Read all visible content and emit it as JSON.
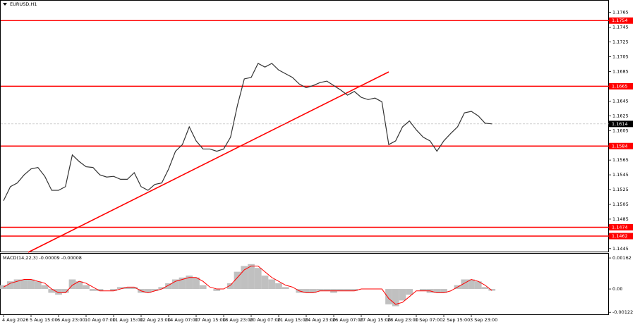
{
  "chart_data": [
    {
      "type": "line",
      "title": "EURUSD,H1",
      "categories": [
        "4 Aug 2026",
        null,
        null,
        null,
        "5 Aug 15:00",
        null,
        null,
        null,
        "6 Aug 23:00",
        null,
        null,
        null,
        "10 Aug 07:00",
        null,
        null,
        null,
        "11 Aug 15:00",
        null,
        null,
        null,
        "12 Aug 23:00",
        null,
        null,
        null,
        "14 Aug 07:00",
        null,
        null,
        null,
        "17 Aug 15:00",
        null,
        null,
        null,
        "18 Aug 23:00",
        null,
        null,
        null,
        "20 Aug 07:00",
        null,
        null,
        null,
        "21 Aug 15:00",
        null,
        null,
        null,
        "24 Aug 23:00",
        null,
        null,
        null,
        "26 Aug 07:00",
        null,
        null,
        null,
        "27 Aug 15:00",
        null,
        null,
        null,
        "28 Aug 23:00",
        null,
        null,
        null,
        "1 Sep 07:00",
        null,
        null,
        null,
        "2 Sep 15:00",
        null,
        null,
        null,
        "3 Sep 23:00",
        null,
        null,
        null
      ],
      "values": [
        1.151,
        1.1529,
        1.1534,
        1.1545,
        1.1553,
        1.1555,
        1.1543,
        1.1524,
        1.1524,
        1.1529,
        1.1572,
        1.1563,
        1.1556,
        1.1555,
        1.1545,
        1.1542,
        1.1543,
        1.1539,
        1.1539,
        1.1548,
        1.1529,
        1.1524,
        1.1532,
        1.1534,
        1.1553,
        1.1577,
        1.1586,
        1.161,
        1.1591,
        1.158,
        1.158,
        1.1577,
        1.158,
        1.1596,
        1.1639,
        1.1675,
        1.1677,
        1.1696,
        1.1691,
        1.1696,
        1.1687,
        1.1682,
        1.1677,
        1.1668,
        1.1663,
        1.1666,
        1.167,
        1.1672,
        1.1666,
        1.166,
        1.1653,
        1.1658,
        1.165,
        1.1647,
        1.1649,
        1.1644,
        1.1586,
        1.1591,
        1.161,
        1.1618,
        1.1606,
        1.1596,
        1.1591,
        1.1577,
        1.1591,
        1.1601,
        1.161,
        1.1629,
        1.1631,
        1.1625,
        1.1615,
        1.1614
      ],
      "color": "#333333",
      "ylim": [
        1.1441,
        1.178
      ],
      "yticks": [
        1.1765,
        1.1745,
        1.1725,
        1.1705,
        1.1685,
        1.1645,
        1.1625,
        1.1605,
        1.1565,
        1.1545,
        1.1525,
        1.1505,
        1.1485,
        1.1445
      ],
      "levels": [
        1.1754,
        1.1665,
        1.1584,
        1.1474,
        1.1462
      ],
      "level_color": "#ff0000",
      "last_price": 1.1614
    },
    {
      "type": "macd",
      "title": "MACD(14,22,3) -0.00009 -0.00008",
      "values": [
        0.0002,
        0.0004,
        0.0005,
        0.0005,
        0.0005,
        0.0004,
        0.0002,
        -0.0002,
        -0.0003,
        -0.0002,
        0.0005,
        0.0004,
        0.0002,
        -0.0001,
        -0.0001,
        0,
        -0.0001,
        0.0001,
        0.0001,
        0.0001,
        -0.0002,
        -0.0002,
        -0.0001,
        0.0001,
        0.0003,
        0.0005,
        0.0006,
        0.0007,
        0.0006,
        0.0002,
        0,
        -0.0001,
        0,
        0.0003,
        0.0009,
        0.0012,
        0.0013,
        0.0011,
        0.0007,
        0.0005,
        0.0003,
        0.0001,
        0,
        -0.0002,
        -0.0002,
        -0.0002,
        -0.0001,
        -0.0001,
        -0.0002,
        -0.0001,
        -0.0001,
        -0.0001,
        0,
        0,
        0,
        0,
        -0.0008,
        -0.0009,
        -0.0006,
        -0.0003,
        0,
        -0.0001,
        -0.0002,
        -0.0002,
        -0.0002,
        0,
        0.0002,
        0.0005,
        0.0005,
        0.0004,
        0.0001,
        -9e-05
      ],
      "signal": [
        0.0001,
        0.0003,
        0.0004,
        0.0005,
        0.0005,
        0.0004,
        0.0003,
        0,
        -0.0002,
        -0.0002,
        0.0002,
        0.0004,
        0.0003,
        0.0001,
        -0.0001,
        -0.0001,
        -0.0001,
        0,
        0.0001,
        0.0001,
        -0.0001,
        -0.0002,
        -0.0001,
        0,
        0.0002,
        0.0004,
        0.0005,
        0.0006,
        0.0006,
        0.0004,
        0.0001,
        0,
        0,
        0.0002,
        0.0006,
        0.001,
        0.0012,
        0.0012,
        0.0009,
        0.0006,
        0.0004,
        0.0002,
        0.0001,
        -0.0001,
        -0.0002,
        -0.0002,
        -0.0001,
        -0.0001,
        -0.0001,
        -0.0001,
        -0.0001,
        -0.0001,
        0,
        0,
        0,
        0,
        -0.0005,
        -0.0008,
        -0.0007,
        -0.0004,
        -0.0001,
        -0.0001,
        -0.0001,
        -0.0002,
        -0.0002,
        -0.0001,
        0.0001,
        0.0003,
        0.0005,
        0.0004,
        0.0002,
        -8e-05
      ],
      "color": "#c0c0c0",
      "signal_color": "#ff0000",
      "ylim": [
        -0.00136,
        0.00188
      ],
      "yticks": [
        0.00162,
        {
          "value": 0,
          "label": "0.00"
        },
        -0.00122
      ]
    }
  ]
}
